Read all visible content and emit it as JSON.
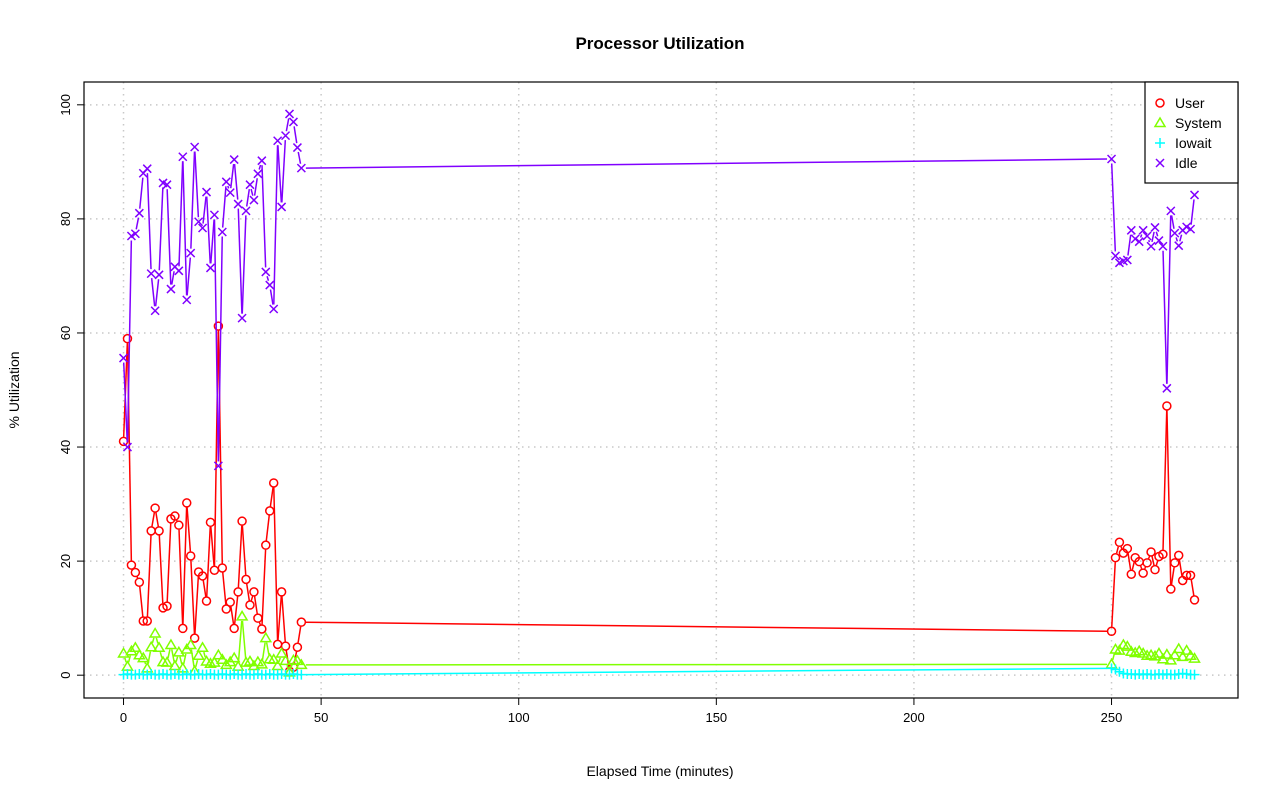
{
  "chart_data": {
    "type": "line",
    "title": "Processor Utilization",
    "xlabel": "Elapsed Time (minutes)",
    "ylabel": "% Utilization",
    "xlim": [
      -10,
      282
    ],
    "ylim": [
      -4,
      104
    ],
    "xticks": [
      0,
      50,
      100,
      150,
      200,
      250
    ],
    "yticks": [
      0,
      20,
      40,
      60,
      80,
      100
    ],
    "grid": true,
    "legend_position": "top-right",
    "x": [
      0,
      1,
      2,
      3,
      4,
      5,
      6,
      7,
      8,
      9,
      10,
      11,
      12,
      13,
      14,
      15,
      16,
      17,
      18,
      19,
      20,
      21,
      22,
      23,
      24,
      25,
      26,
      27,
      28,
      29,
      30,
      31,
      32,
      33,
      34,
      35,
      36,
      37,
      38,
      39,
      40,
      41,
      42,
      43,
      44,
      45,
      250,
      251,
      252,
      253,
      254,
      255,
      256,
      257,
      258,
      259,
      260,
      261,
      262,
      263,
      264,
      265,
      266,
      267,
      268,
      269,
      270,
      271
    ],
    "series": [
      {
        "name": "User",
        "color": "#ff0000",
        "marker": "circle",
        "values": [
          41,
          59,
          19.3,
          18,
          16.3,
          9.5,
          9.5,
          25.3,
          29.3,
          25.3,
          11.8,
          12.1,
          27.4,
          27.9,
          26.3,
          8.2,
          30.2,
          20.9,
          6.5,
          18.1,
          17.4,
          13,
          26.8,
          18.4,
          61.2,
          18.8,
          11.6,
          12.8,
          8.2,
          14.6,
          27,
          16.8,
          12.3,
          14.6,
          10,
          8.1,
          22.8,
          28.8,
          33.7,
          5.4,
          14.6,
          5.1,
          0.7,
          1.4,
          4.9,
          9.3,
          7.7,
          20.6,
          23.3,
          21.4,
          22.2,
          17.7,
          20.6,
          19.9,
          17.9,
          19.7,
          21.6,
          18.5,
          20.8,
          21.2,
          47.2,
          15.1,
          19.7,
          21,
          16.6,
          17.5,
          17.5,
          13.2
        ]
      },
      {
        "name": "System",
        "color": "#80ff00",
        "marker": "triangle",
        "values": [
          3.8,
          1.5,
          4.2,
          4.8,
          3.5,
          3.0,
          1.2,
          4.9,
          7.3,
          4.8,
          2.3,
          2.2,
          5.3,
          1.6,
          4.0,
          1.2,
          4.5,
          5.3,
          0.7,
          3.4,
          4.8,
          2.4,
          2.0,
          2.2,
          3.5,
          2.7,
          1.8,
          2.3,
          3.0,
          1.5,
          10.3,
          2.2,
          2.4,
          1.6,
          2.3,
          1.9,
          6.5,
          2.8,
          2.7,
          1.6,
          3.8,
          2.5,
          0.5,
          2.6,
          2.5,
          1.8,
          1.9,
          4.5,
          4.3,
          5.3,
          5.0,
          4.1,
          3.9,
          4.2,
          3.8,
          3.4,
          3.5,
          3.3,
          3.8,
          2.8,
          3.6,
          2.6,
          3.5,
          4.6,
          3.2,
          4.3,
          3.4,
          2.9
        ]
      },
      {
        "name": "Iowait",
        "color": "#00ffff",
        "marker": "plus",
        "values": [
          0.1,
          0.2,
          0.1,
          0.1,
          0.2,
          0.1,
          0.1,
          0.2,
          0.1,
          0.1,
          0.2,
          0.1,
          0.1,
          0.2,
          0.1,
          0.1,
          0.2,
          0.1,
          0.1,
          0.2,
          0.1,
          0.1,
          0.2,
          0.1,
          0.1,
          0.2,
          0.1,
          0.1,
          0.2,
          0.1,
          0.1,
          0.2,
          0.1,
          0.1,
          0.2,
          0.1,
          0.1,
          0.2,
          0.1,
          0.1,
          0.2,
          0.1,
          0.1,
          0.2,
          0.1,
          0.1,
          1.2,
          1.0,
          0.6,
          0.3,
          0.2,
          0.2,
          0.1,
          0.2,
          0.1,
          0.2,
          0.1,
          0.1,
          0.2,
          0.1,
          0.2,
          0.1,
          0.1,
          0.2,
          0.3,
          0.2,
          0.1,
          0.1
        ]
      },
      {
        "name": "Idle",
        "color": "#8000ff",
        "marker": "cross",
        "values": [
          55.6,
          40,
          77,
          77.4,
          81,
          88,
          88.8,
          70.4,
          63.9,
          70.2,
          86.3,
          86,
          67.7,
          71.6,
          70.9,
          90.9,
          65.8,
          74,
          92.6,
          79.5,
          78.4,
          84.7,
          71.4,
          80.7,
          36.7,
          77.7,
          86.5,
          84.6,
          90.4,
          82.6,
          62.6,
          81.4,
          86,
          83.3,
          87.9,
          90.2,
          70.7,
          68.4,
          64.2,
          93.7,
          82.1,
          94.6,
          98.4,
          97,
          92.5,
          88.9,
          90.5,
          73.5,
          72.3,
          72.6,
          72.8,
          78,
          76.5,
          76,
          78,
          77,
          75.2,
          78.5,
          76.2,
          75.2,
          50.3,
          81.4,
          77.5,
          75.3,
          78,
          78.6,
          78.2,
          84.2
        ]
      }
    ]
  }
}
